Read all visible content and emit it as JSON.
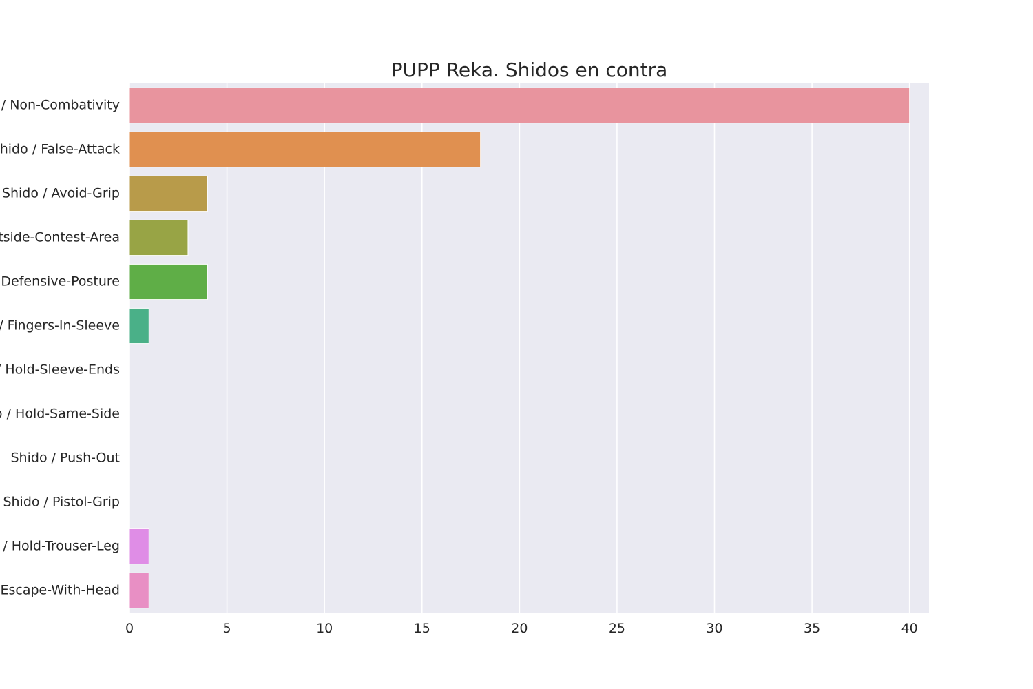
{
  "chart_data": {
    "type": "bar",
    "orientation": "horizontal",
    "title": "PUPP Reka. Shidos en contra",
    "xlabel": "",
    "ylabel": "",
    "xlim": [
      0,
      41
    ],
    "xticks": [
      0,
      5,
      10,
      15,
      20,
      25,
      30,
      35,
      40
    ],
    "grid": true,
    "categories": [
      "Shido / Non-Combativity",
      "Shido / False-Attack",
      "Shido / Avoid-Grip",
      "Shido / Outside-Contest-Area",
      "Shido / Defensive-Posture",
      "Shido / Fingers-In-Sleeve",
      "Shido / Hold-Sleeve-Ends",
      "Shido / Hold-Same-Side",
      "Shido / Push-Out",
      "Shido / Pistol-Grip",
      "Shido / Hold-Trouser-Leg",
      "Shido / Escape-With-Head"
    ],
    "values": [
      40,
      18,
      4,
      3,
      4,
      1,
      0,
      0,
      0,
      0,
      1,
      1
    ],
    "colors": [
      "#e8949e",
      "#e09050",
      "#b89b4a",
      "#98a445",
      "#5fae47",
      "#4ab088",
      "#4aaeb0",
      "#4aa8c8",
      "#6e9ee6",
      "#b99be8",
      "#df8de6",
      "#e88fc4"
    ],
    "plot_bg": "#eaeaf2"
  }
}
